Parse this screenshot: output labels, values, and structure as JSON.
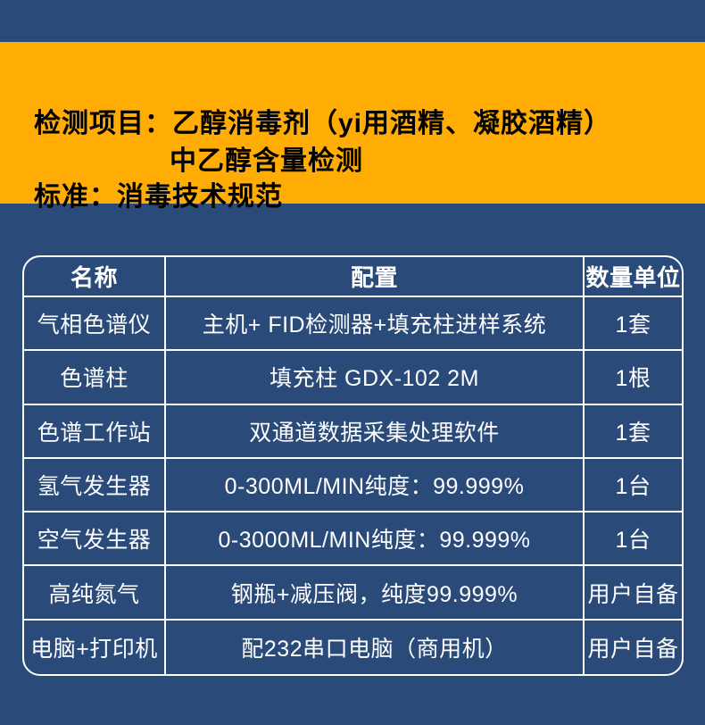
{
  "page": {
    "background_color": "#2a4a7a"
  },
  "banner": {
    "background_color": "#ffac04",
    "text_color": "#000000",
    "line1": "检测项目：乙醇消毒剂（yi用酒精、凝胶酒精）",
    "line2": "中乙醇含量检测",
    "line3": "标准：消毒技术规范"
  },
  "spec_table": {
    "border_color": "#ffffff",
    "text_color": "#ffffff",
    "headers": [
      "名称",
      "配置",
      "数量单位"
    ],
    "rows": [
      {
        "name": "气相色谱仪",
        "config": "主机+ FID检测器+填充柱进样系统",
        "qty": "1套"
      },
      {
        "name": "色谱柱",
        "config": "填充柱 GDX-102 2M",
        "qty": "1根"
      },
      {
        "name": "色谱工作站",
        "config": "双通道数据采集处理软件",
        "qty": "1套"
      },
      {
        "name": "氢气发生器",
        "config": "0-300ML/MIN纯度：99.999%",
        "qty": "1台"
      },
      {
        "name": "空气发生器",
        "config": "0-3000ML/MIN纯度：99.999%",
        "qty": "1台"
      },
      {
        "name": "高纯氮气",
        "config": "钢瓶+减压阀，纯度99.999%",
        "qty": "用户自备"
      },
      {
        "name": "电脑+打印机",
        "config": "配232串口电脑（商用机）",
        "qty": "用户自备"
      }
    ]
  }
}
